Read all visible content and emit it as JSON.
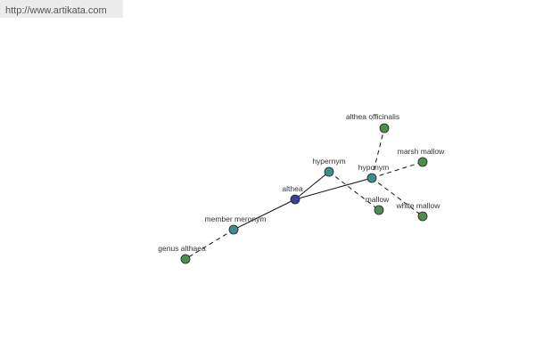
{
  "header": {
    "url": "http://www.artikata.com"
  },
  "nodes": [
    {
      "label": "althea"
    },
    {
      "label": "hypernym"
    },
    {
      "label": "hyponym"
    },
    {
      "label": "member meronym"
    },
    {
      "label": "althea officinalis"
    },
    {
      "label": "marsh mallow"
    },
    {
      "label": "mallow"
    },
    {
      "label": "white mallow"
    },
    {
      "label": "genus althaea"
    }
  ]
}
